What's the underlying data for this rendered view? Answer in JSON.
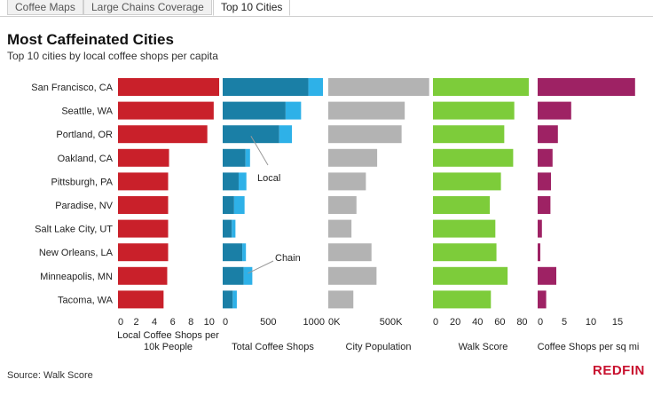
{
  "tabs": [
    {
      "label": "Coffee Maps",
      "active": false
    },
    {
      "label": "Large Chains Coverage",
      "active": false
    },
    {
      "label": "Top 10 Cities",
      "active": true
    }
  ],
  "title": "Most Caffeinated Cities",
  "subtitle": "Top 10 cities by local coffee shops per capita",
  "source": "Source: Walk Score",
  "brand": "REDFIN",
  "chart_data": {
    "type": "bar",
    "orientation": "horizontal",
    "categories": [
      "San Francisco, CA",
      "Seattle, WA",
      "Portland, OR",
      "Oakland, CA",
      "Pittsburgh, PA",
      "Paradise, NV",
      "Salt Lake City, UT",
      "New Orleans, LA",
      "Minneapolis, MN",
      "Tacoma, WA"
    ],
    "panels": [
      {
        "id": "local_per_10k",
        "xlabel": "Local Coffee Shops per\n10k People",
        "xlim": [
          0,
          11
        ],
        "ticks": [
          0,
          2,
          4,
          6,
          8,
          10
        ],
        "tick_labels": [
          "0",
          "2",
          "4",
          "6",
          "8",
          "10"
        ],
        "series": [
          {
            "color": "#c9202a",
            "values": [
              11.1,
              10.5,
              9.8,
              5.6,
              5.5,
              5.5,
              5.5,
              5.5,
              5.4,
              5.0
            ]
          }
        ]
      },
      {
        "id": "total_shops",
        "xlabel": "Total Coffee Shops",
        "xlim": [
          0,
          1100
        ],
        "ticks": [
          0,
          500,
          1000
        ],
        "tick_labels": [
          "0",
          "500",
          "1000"
        ],
        "stacked": true,
        "series": [
          {
            "name": "Local",
            "color": "#1a7fa6",
            "values": [
              940,
              690,
              620,
              250,
              175,
              125,
              100,
              215,
              230,
              110
            ]
          },
          {
            "name": "Chain",
            "color": "#2eb1e8",
            "values": [
              160,
              170,
              140,
              50,
              85,
              115,
              40,
              40,
              95,
              45
            ]
          }
        ],
        "annotations": [
          {
            "text": "Local",
            "series": "Local",
            "category": "Portland, OR"
          },
          {
            "text": "Chain",
            "series": "Chain",
            "category": "Minneapolis, MN"
          }
        ]
      },
      {
        "id": "population",
        "xlabel": "City Population",
        "xlim": [
          0,
          800000
        ],
        "ticks": [
          0,
          500000
        ],
        "tick_labels": [
          "0K",
          "500K"
        ],
        "series": [
          {
            "color": "#b3b3b3",
            "values": [
              805000,
              610000,
              585000,
              390000,
              300000,
              225000,
              185000,
              345000,
              385000,
              200000
            ]
          }
        ]
      },
      {
        "id": "walk_score",
        "xlabel": "Walk Score",
        "xlim": [
          0,
          90
        ],
        "ticks": [
          0,
          20,
          40,
          60,
          80
        ],
        "tick_labels": [
          "0",
          "20",
          "40",
          "60",
          "80"
        ],
        "series": [
          {
            "color": "#7dcc3a",
            "values": [
              86,
              73,
              64,
              72,
              61,
              51,
              56,
              57,
              67,
              52
            ]
          }
        ]
      },
      {
        "id": "per_sq_mi",
        "xlabel": "Coffee Shops per sq mi",
        "xlim": [
          0,
          19
        ],
        "ticks": [
          0,
          5,
          10,
          15
        ],
        "tick_labels": [
          "0",
          "5",
          "10",
          "15"
        ],
        "series": [
          {
            "color": "#9e2264",
            "values": [
              18.3,
              6.3,
              3.8,
              2.8,
              2.5,
              2.4,
              0.8,
              0.5,
              3.5,
              1.6
            ]
          }
        ]
      }
    ]
  }
}
